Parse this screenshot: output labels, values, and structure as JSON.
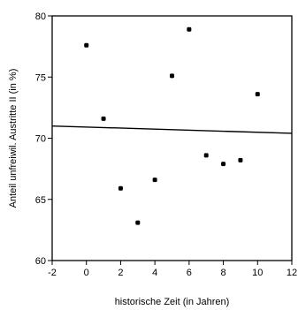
{
  "chart_data": {
    "type": "scatter",
    "title": "",
    "xlabel": "historische Zeit (in Jahren)",
    "ylabel": "Anteil unfreiwil. Austritte II (in %)",
    "xlim": [
      -2,
      12
    ],
    "ylim": [
      60,
      80
    ],
    "xticks": [
      -2,
      0,
      2,
      4,
      6,
      8,
      10,
      12
    ],
    "yticks": [
      60,
      65,
      70,
      75,
      80
    ],
    "grid": false,
    "legend": "none",
    "series": [
      {
        "points": [
          {
            "x": 0,
            "y": 77.6
          },
          {
            "x": 1,
            "y": 71.6
          },
          {
            "x": 2,
            "y": 65.9
          },
          {
            "x": 3,
            "y": 63.1
          },
          {
            "x": 4,
            "y": 66.6
          },
          {
            "x": 5,
            "y": 75.1
          },
          {
            "x": 6,
            "y": 78.9
          },
          {
            "x": 7,
            "y": 68.6
          },
          {
            "x": 8,
            "y": 67.9
          },
          {
            "x": 9,
            "y": 68.2
          },
          {
            "x": 10,
            "y": 73.6
          }
        ]
      }
    ],
    "trendline": {
      "x": [
        -2,
        12
      ],
      "y": [
        71.0,
        70.4
      ]
    },
    "colors": {
      "marker": "#000000",
      "line": "#000000",
      "axis": "#000000"
    }
  }
}
